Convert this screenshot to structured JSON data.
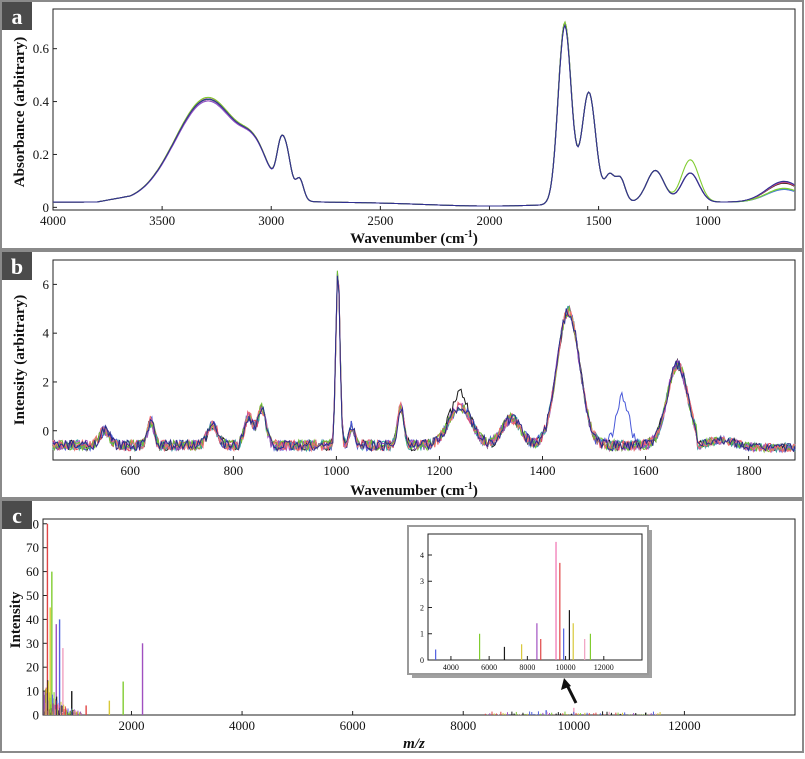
{
  "chart_data": [
    {
      "panel_label": "a",
      "type": "line",
      "xlabel": "Wavenumber (cm",
      "xlabel_sup": "-1",
      "xlabel_close": ")",
      "ylabel": "Absorbance (arbitrary)",
      "xlim": [
        4000,
        600
      ],
      "x_reversed": true,
      "ylim": [
        -0.01,
        0.75
      ],
      "xticks": [
        4000,
        3500,
        3000,
        2500,
        2000,
        1500,
        1000
      ],
      "yticks": [
        0,
        0.2,
        0.4,
        0.6
      ],
      "ytick_labels": [
        "0",
        "0.2",
        "0.4",
        "0.6"
      ],
      "series_colors": [
        "#1a1a1a",
        "#5060e0",
        "#e04545",
        "#40b0a0",
        "#a050c0",
        "#80cc30",
        "#303090"
      ],
      "peaks": [
        {
          "x": 3290,
          "y": 0.41
        },
        {
          "x": 3070,
          "y": 0.18
        },
        {
          "x": 2960,
          "y": 0.24
        },
        {
          "x": 2930,
          "y": 0.25
        },
        {
          "x": 2870,
          "y": 0.14
        },
        {
          "x": 1655,
          "y": 0.7
        },
        {
          "x": 1545,
          "y": 0.44
        },
        {
          "x": 1450,
          "y": 0.17
        },
        {
          "x": 1400,
          "y": 0.15
        },
        {
          "x": 1240,
          "y": 0.17
        },
        {
          "x": 1080,
          "y": 0.15
        },
        {
          "x": 650,
          "y": 0.09
        }
      ]
    },
    {
      "panel_label": "b",
      "type": "line",
      "xlabel": "Wavenumber (cm",
      "xlabel_sup": "-1",
      "xlabel_close": ")",
      "ylabel": "Intensity (arbitrary)",
      "xlim": [
        450,
        1890
      ],
      "x_reversed": false,
      "ylim": [
        -1.2,
        7
      ],
      "xticks": [
        600,
        800,
        1000,
        1200,
        1400,
        1600,
        1800
      ],
      "yticks": [
        0,
        2,
        4,
        6
      ],
      "ytick_labels": [
        "0",
        "2",
        "4",
        "6"
      ],
      "series_colors": [
        "#1a1a1a",
        "#4858d8",
        "#e04560",
        "#30a8a0",
        "#a050c0",
        "#70c030",
        "#f07070",
        "#2c2c8c"
      ],
      "peaks": [
        {
          "x": 550,
          "y": 0.6
        },
        {
          "x": 640,
          "y": 1.0
        },
        {
          "x": 760,
          "y": 0.8
        },
        {
          "x": 830,
          "y": 1.6
        },
        {
          "x": 855,
          "y": 2.0
        },
        {
          "x": 1003,
          "y": 6.9
        },
        {
          "x": 1030,
          "y": 0.8
        },
        {
          "x": 1125,
          "y": 1.8
        },
        {
          "x": 1240,
          "y": 2.2
        },
        {
          "x": 1340,
          "y": 1.1
        },
        {
          "x": 1450,
          "y": 5.0
        },
        {
          "x": 1555,
          "y": 1.6
        },
        {
          "x": 1660,
          "y": 2.9
        }
      ]
    },
    {
      "panel_label": "c",
      "type": "line",
      "xlabel": "m/z",
      "ylabel": "Intensity",
      "xlim": [
        400,
        14000
      ],
      "x_reversed": false,
      "ylim": [
        0,
        82
      ],
      "xticks": [
        2000,
        4000,
        6000,
        8000,
        10000,
        12000
      ],
      "yticks": [
        0,
        10,
        20,
        30,
        40,
        50,
        60,
        70,
        80
      ],
      "ytick_labels": [
        "0",
        "10",
        "20",
        "30",
        "40",
        "50",
        "60",
        "70",
        "80"
      ],
      "series_colors": [
        "#e04545",
        "#d8c838",
        "#80cc30",
        "#a050c0",
        "#5060e0",
        "#f0a0c0",
        "#1a1a1a"
      ],
      "peaks": [
        {
          "x": 480,
          "y": 80
        },
        {
          "x": 530,
          "y": 45
        },
        {
          "x": 560,
          "y": 60
        },
        {
          "x": 640,
          "y": 38
        },
        {
          "x": 700,
          "y": 40
        },
        {
          "x": 760,
          "y": 28
        },
        {
          "x": 920,
          "y": 10
        },
        {
          "x": 1180,
          "y": 4
        },
        {
          "x": 1600,
          "y": 6
        },
        {
          "x": 1850,
          "y": 14
        },
        {
          "x": 2200,
          "y": 30
        },
        {
          "x": 9500,
          "y": 2
        },
        {
          "x": 10000,
          "y": 3
        },
        {
          "x": 11300,
          "y": 1
        }
      ],
      "inset": {
        "xlim": [
          2800,
          14000
        ],
        "ylim": [
          0,
          4.8
        ],
        "xticks": [
          4000,
          6000,
          8000,
          10000,
          12000
        ],
        "yticks": [
          0,
          1,
          2,
          3,
          4
        ],
        "ytick_labels": [
          "0",
          "1",
          "2",
          "3",
          "4"
        ],
        "peaks": [
          {
            "x": 3200,
            "y": 0.4,
            "c": "#5060e0"
          },
          {
            "x": 5500,
            "y": 1.0,
            "c": "#80cc30"
          },
          {
            "x": 6800,
            "y": 0.5,
            "c": "#1a1a1a"
          },
          {
            "x": 7700,
            "y": 0.6,
            "c": "#d8c838"
          },
          {
            "x": 8500,
            "y": 1.4,
            "c": "#a050c0"
          },
          {
            "x": 8700,
            "y": 0.8,
            "c": "#e04545"
          },
          {
            "x": 9500,
            "y": 4.5,
            "c": "#f070b0"
          },
          {
            "x": 9700,
            "y": 3.7,
            "c": "#e04545"
          },
          {
            "x": 9900,
            "y": 1.2,
            "c": "#5060e0"
          },
          {
            "x": 10200,
            "y": 1.9,
            "c": "#1a1a1a"
          },
          {
            "x": 10400,
            "y": 1.4,
            "c": "#d8c838"
          },
          {
            "x": 11000,
            "y": 0.8,
            "c": "#f0a0c0"
          },
          {
            "x": 11300,
            "y": 1.0,
            "c": "#80cc30"
          }
        ]
      }
    }
  ]
}
